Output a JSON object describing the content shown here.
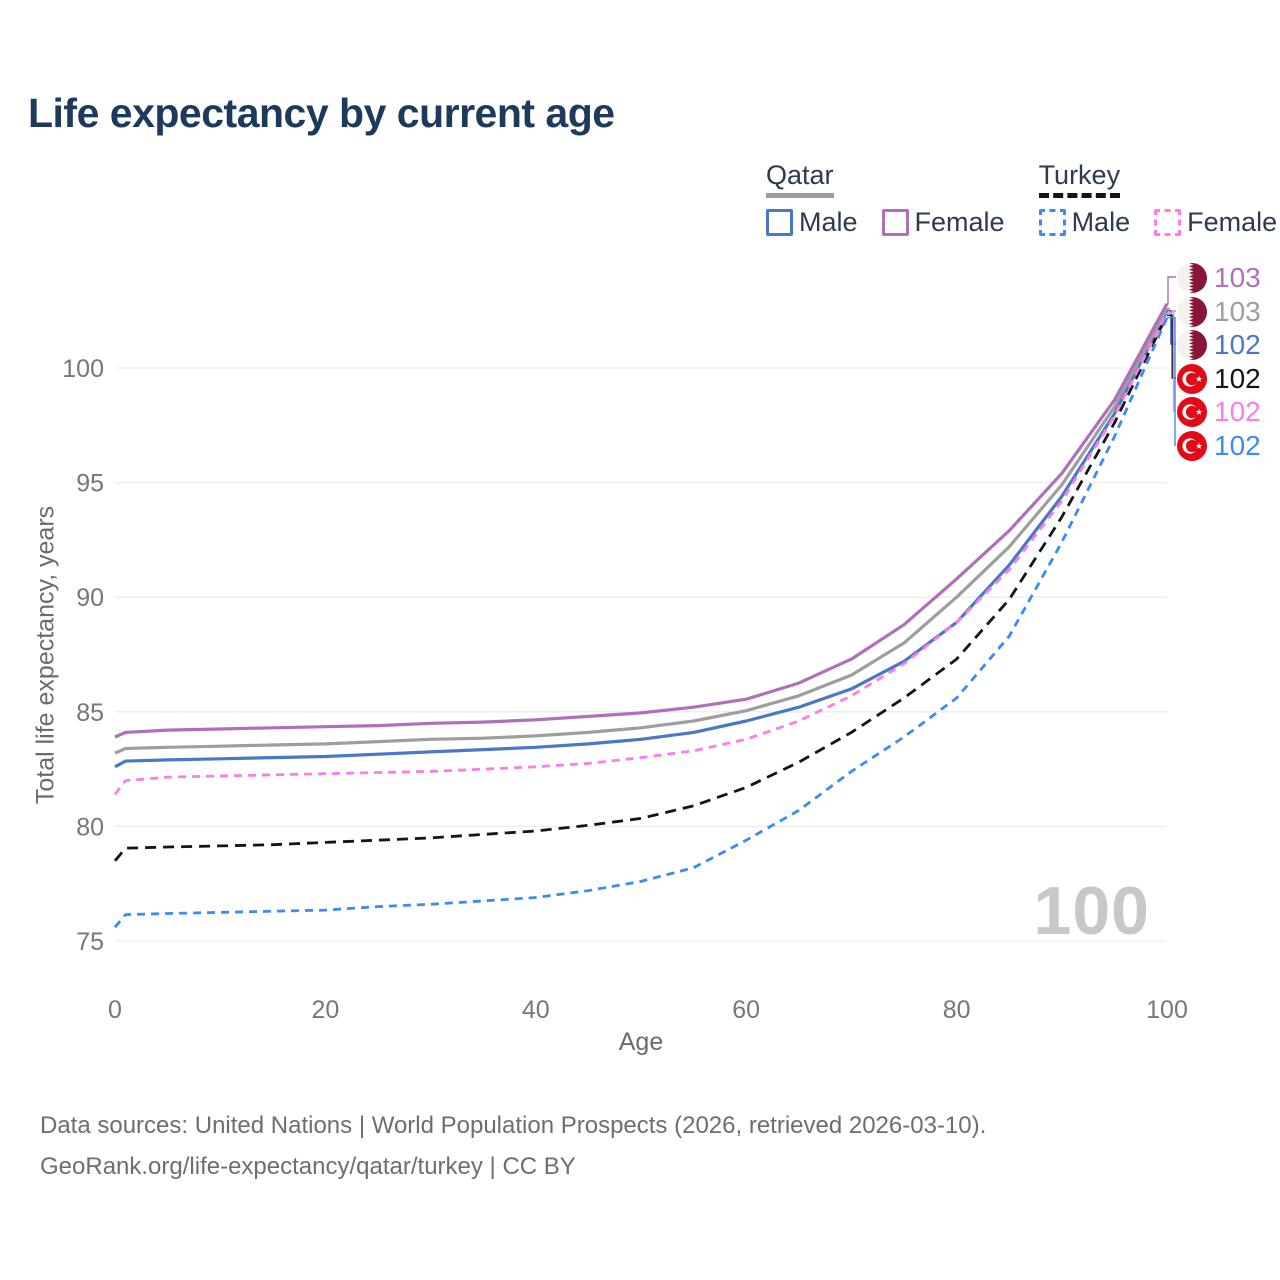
{
  "title": "Life expectancy by current age",
  "legend": {
    "groups": [
      {
        "country": "Qatar",
        "underline_style": "solid",
        "underline_color": "#9e9e9e",
        "items": [
          {
            "label": "Male",
            "color": "#4a78c8",
            "dashed": false
          },
          {
            "label": "Female",
            "color": "#b06fba",
            "dashed": false
          }
        ]
      },
      {
        "country": "Turkey",
        "underline_style": "dashed",
        "underline_color": "#141414",
        "items": [
          {
            "label": "Male",
            "color": "#3d8af7",
            "dashed": true
          },
          {
            "label": "Female",
            "color": "#ff7bea",
            "dashed": true
          }
        ]
      }
    ]
  },
  "chart_data": {
    "type": "line",
    "title": "Life expectancy by current age",
    "xlabel": "Age",
    "ylabel": "Total life expectancy, years",
    "xlim": [
      0,
      100
    ],
    "ylim": [
      75,
      100
    ],
    "grid": "horizontal",
    "legend_position": "top-right",
    "x_ticks": [
      0,
      20,
      40,
      60,
      80,
      100
    ],
    "y_ticks": [
      75,
      80,
      85,
      90,
      95,
      100
    ],
    "ages": [
      0,
      1,
      5,
      10,
      15,
      20,
      25,
      30,
      35,
      40,
      45,
      50,
      55,
      60,
      65,
      70,
      75,
      80,
      85,
      90,
      95,
      100
    ],
    "series": [
      {
        "id": "qatar-female",
        "country": "Qatar",
        "sex": "Female",
        "color": "#b06fba",
        "dashed": false,
        "flag": "qatar-flag-icon",
        "end_label": "103",
        "values": [
          83.9,
          84.1,
          84.2,
          84.25,
          84.3,
          84.35,
          84.4,
          84.5,
          84.55,
          84.65,
          84.8,
          84.95,
          85.2,
          85.55,
          86.25,
          87.3,
          88.8,
          90.8,
          92.9,
          95.4,
          98.6,
          102.8
        ]
      },
      {
        "id": "qatar-both",
        "country": "Qatar",
        "sex": "Both sexes",
        "color": "#9e9e9e",
        "dashed": false,
        "flag": "qatar-flag-icon",
        "end_label": "103",
        "values": [
          83.2,
          83.4,
          83.45,
          83.5,
          83.55,
          83.6,
          83.7,
          83.8,
          83.85,
          83.95,
          84.1,
          84.3,
          84.6,
          85.05,
          85.7,
          86.6,
          88.0,
          90.0,
          92.2,
          94.9,
          98.3,
          102.6
        ]
      },
      {
        "id": "qatar-male",
        "country": "Qatar",
        "sex": "Male",
        "color": "#4a78c8",
        "dashed": false,
        "flag": "qatar-flag-icon",
        "end_label": "102",
        "values": [
          82.6,
          82.85,
          82.9,
          82.95,
          83.0,
          83.05,
          83.15,
          83.25,
          83.35,
          83.45,
          83.6,
          83.8,
          84.1,
          84.6,
          85.2,
          86.0,
          87.2,
          88.9,
          91.4,
          94.4,
          98.0,
          102.5
        ]
      },
      {
        "id": "turkey-both",
        "country": "Turkey",
        "sex": "Both sexes",
        "color": "#141414",
        "dashed": true,
        "flag": "turkey-flag-icon",
        "end_label": "102",
        "values": [
          78.5,
          79.05,
          79.1,
          79.15,
          79.2,
          79.3,
          79.4,
          79.5,
          79.65,
          79.8,
          80.05,
          80.35,
          80.9,
          81.7,
          82.8,
          84.1,
          85.6,
          87.3,
          89.9,
          93.5,
          97.6,
          102.3
        ]
      },
      {
        "id": "turkey-female",
        "country": "Turkey",
        "sex": "Female",
        "color": "#ff7bea",
        "dashed": true,
        "flag": "turkey-flag-icon",
        "end_label": "102",
        "values": [
          81.4,
          82.0,
          82.15,
          82.2,
          82.25,
          82.3,
          82.35,
          82.4,
          82.5,
          82.6,
          82.75,
          83.0,
          83.3,
          83.8,
          84.6,
          85.7,
          87.1,
          88.9,
          91.2,
          94.2,
          97.9,
          102.4
        ]
      },
      {
        "id": "turkey-male",
        "country": "Turkey",
        "sex": "Male",
        "color": "#3d8af7",
        "dashed": true,
        "flag": "turkey-flag-icon",
        "end_label": "102",
        "values": [
          75.6,
          76.15,
          76.2,
          76.25,
          76.3,
          76.35,
          76.5,
          76.6,
          76.75,
          76.9,
          77.2,
          77.6,
          78.2,
          79.4,
          80.7,
          82.4,
          83.9,
          85.6,
          88.3,
          92.4,
          97.0,
          102.2
        ]
      }
    ]
  },
  "watermark": "100",
  "footer": {
    "line1": "Data sources: United Nations | World Population Prospects (2026, retrieved 2026-03-10).",
    "line2": "GeoRank.org/life-expectancy/qatar/turkey | CC BY"
  },
  "flag_colors": {
    "qatar_maroon": "#8a1538",
    "qatar_white": "#f4f2ef",
    "turkey_red": "#e30a17",
    "turkey_white": "#ffffff"
  }
}
